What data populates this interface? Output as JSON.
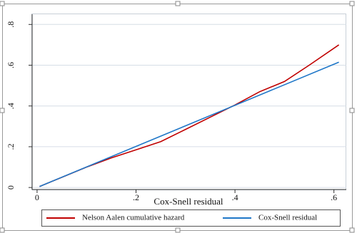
{
  "chart_data": {
    "type": "line",
    "x_label": "Cox-Snell residual",
    "xlim": [
      -0.01,
      0.625
    ],
    "ylim": [
      -0.01,
      0.85
    ],
    "xticks": [
      0,
      {
        "value": 0.2,
        "label": ".2"
      },
      {
        "value": 0.4,
        "label": ".4"
      },
      {
        "value": 0.6,
        "label": ".6"
      }
    ],
    "yticks": [
      0,
      {
        "value": 0.2,
        "label": ".2"
      },
      {
        "value": 0.4,
        "label": ".4"
      },
      {
        "value": 0.6,
        "label": ".6"
      },
      {
        "value": 0.8,
        "label": ".8"
      }
    ],
    "grid": true,
    "series": [
      {
        "name": "Nelson Aalen cumulative hazard",
        "color": "#c00000",
        "x": [
          0.005,
          0.05,
          0.1,
          0.15,
          0.2,
          0.25,
          0.3,
          0.35,
          0.4,
          0.45,
          0.5,
          0.55,
          0.61
        ],
        "values": [
          0.005,
          0.05,
          0.1,
          0.145,
          0.185,
          0.225,
          0.285,
          0.345,
          0.405,
          0.47,
          0.52,
          0.6,
          0.7
        ]
      },
      {
        "name": "Cox-Snell residual",
        "color": "#1f77c8",
        "x": [
          0.005,
          0.61
        ],
        "values": [
          0.005,
          0.615
        ]
      }
    ]
  }
}
